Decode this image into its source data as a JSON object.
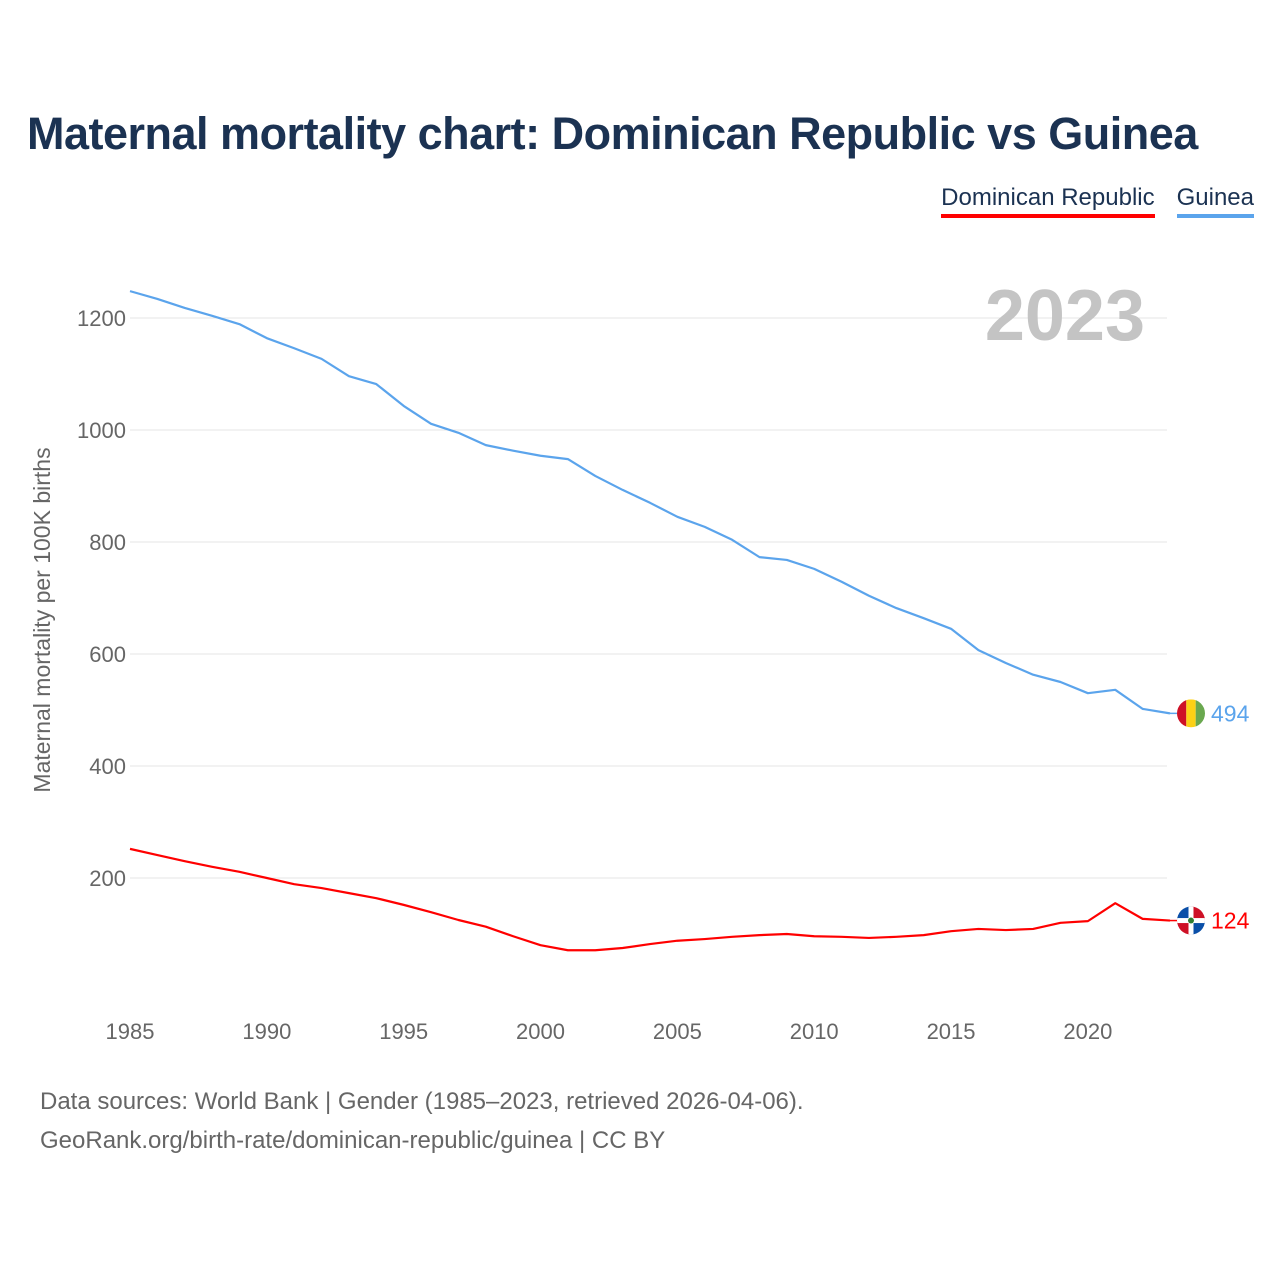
{
  "title": "Maternal mortality chart: Dominican Republic vs Guinea",
  "source_line1": "Data sources: World Bank | Gender (1985–2023, retrieved 2026-04-06).",
  "source_line2": "GeoRank.org/birth-rate/dominican-republic/guinea | CC BY",
  "chart_data": {
    "type": "line",
    "title": "Maternal mortality chart: Dominican Republic vs Guinea",
    "ylabel": "Maternal mortality per 100K births",
    "xlabel": "",
    "year_label": "2023",
    "ylim": [
      0,
      1260
    ],
    "xlim": [
      1985,
      2023
    ],
    "yticks": [
      200,
      400,
      600,
      800,
      1000,
      1200
    ],
    "xticks": [
      1985,
      1990,
      1995,
      2000,
      2005,
      2010,
      2015,
      2020
    ],
    "grid": true,
    "legend_position": "top-right",
    "x": [
      1985,
      1986,
      1987,
      1988,
      1989,
      1990,
      1991,
      1992,
      1993,
      1994,
      1995,
      1996,
      1997,
      1998,
      1999,
      2000,
      2001,
      2002,
      2003,
      2004,
      2005,
      2006,
      2007,
      2008,
      2009,
      2010,
      2011,
      2012,
      2013,
      2014,
      2015,
      2016,
      2017,
      2018,
      2019,
      2020,
      2021,
      2022,
      2023
    ],
    "series": [
      {
        "name": "Dominican Republic",
        "color": "#ff0000",
        "end_label": "124",
        "values": [
          252,
          241,
          230,
          220,
          211,
          200,
          189,
          182,
          173,
          164,
          152,
          139,
          125,
          113,
          96,
          80,
          71,
          71,
          75,
          82,
          88,
          91,
          95,
          98,
          100,
          96,
          95,
          93,
          95,
          98,
          105,
          109,
          107,
          109,
          120,
          123,
          155,
          127,
          124
        ]
      },
      {
        "name": "Guinea",
        "color": "#5ba4ec",
        "end_label": "494",
        "values": [
          1248,
          1234,
          1218,
          1204,
          1189,
          1164,
          1146,
          1127,
          1096,
          1082,
          1043,
          1011,
          995,
          973,
          963,
          954,
          948,
          918,
          893,
          870,
          845,
          827,
          804,
          773,
          768,
          752,
          729,
          704,
          682,
          664,
          645,
          607,
          584,
          563,
          550,
          530,
          536,
          502,
          494
        ]
      }
    ]
  }
}
